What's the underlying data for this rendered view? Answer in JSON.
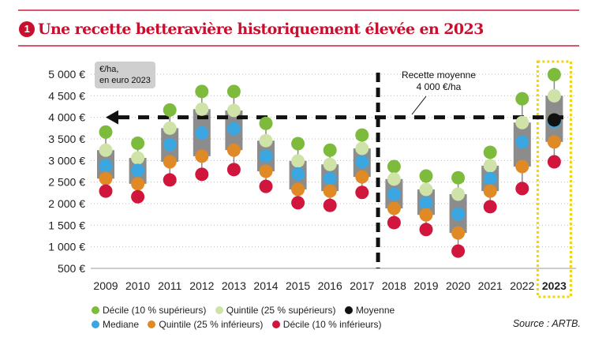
{
  "title": {
    "number": "1",
    "text": "Une recette betteravière historiquement élevée en 2023"
  },
  "unit_label": [
    "€/ha,",
    "en euro 2023"
  ],
  "annotation": [
    "Recette moyenne",
    "4 000 €/ha"
  ],
  "source": "Source : ARTB.",
  "colors": {
    "decile_sup": "#7dbb3c",
    "quintile_sup": "#cfe3a8",
    "moyenne": "#111111",
    "mediane": "#3ba6e0",
    "quintile_inf": "#e08a25",
    "decile_inf": "#d0163c",
    "box": "#8c8c8c",
    "title": "#c8102e",
    "highlight": "#f0d21a"
  },
  "chart_data": {
    "type": "scatter",
    "title": "Une recette betteravière historiquement élevée en 2023",
    "ylabel": "€/ha, en euro 2023",
    "ylim": [
      500,
      5000
    ],
    "yticks": [
      "500 €",
      "1 000 €",
      "1 500 €",
      "2 000 €",
      "2 500 €",
      "3 000 €",
      "3 500 €",
      "4 000 €",
      "4 500 €",
      "5 000 €"
    ],
    "ytick_values": [
      500,
      1000,
      1500,
      2000,
      2500,
      3000,
      3500,
      4000,
      4500,
      5000
    ],
    "grid": true,
    "legend_placement": "bottom",
    "categories": [
      "2009",
      "2010",
      "2011",
      "2012",
      "2013",
      "2014",
      "2015",
      "2016",
      "2017",
      "2018",
      "2019",
      "2020",
      "2021",
      "2022",
      "2023"
    ],
    "highlight_category": "2023",
    "reference_line": {
      "value": 4000,
      "label": "Recette moyenne 4 000 €/ha"
    },
    "divider_after": "2017",
    "series": [
      {
        "key": "decile_sup",
        "name": "Décile (10 % supérieurs)",
        "values": [
          3660,
          3400,
          4170,
          4600,
          4600,
          3860,
          3390,
          3240,
          3590,
          2860,
          2640,
          2600,
          3190,
          4430,
          4990
        ]
      },
      {
        "key": "quintile_sup",
        "name": "Quintile (25 % supérieurs)",
        "values": [
          3240,
          3060,
          3750,
          4190,
          4160,
          3460,
          2990,
          2910,
          3280,
          2570,
          2330,
          2220,
          2880,
          3880,
          4500
        ]
      },
      {
        "key": "mediane",
        "name": "Mediane",
        "values": [
          2880,
          2770,
          3370,
          3640,
          3740,
          3100,
          2690,
          2580,
          2970,
          2220,
          2020,
          1760,
          2580,
          3430,
          3900
        ]
      },
      {
        "key": "quintile_inf",
        "name": "Quintile (25 % inférieurs)",
        "values": [
          2580,
          2460,
          2970,
          3100,
          3240,
          2750,
          2330,
          2290,
          2620,
          1890,
          1740,
          1320,
          2290,
          2860,
          3430
        ]
      },
      {
        "key": "decile_inf",
        "name": "Décile (10 % inférieurs)",
        "values": [
          2290,
          2160,
          2550,
          2680,
          2790,
          2400,
          2020,
          1960,
          2260,
          1560,
          1400,
          900,
          1930,
          2350,
          2970
        ]
      },
      {
        "key": "moyenne",
        "name": "Moyenne",
        "values": [
          null,
          null,
          null,
          null,
          null,
          null,
          null,
          null,
          null,
          null,
          null,
          null,
          null,
          null,
          3940
        ]
      }
    ]
  }
}
